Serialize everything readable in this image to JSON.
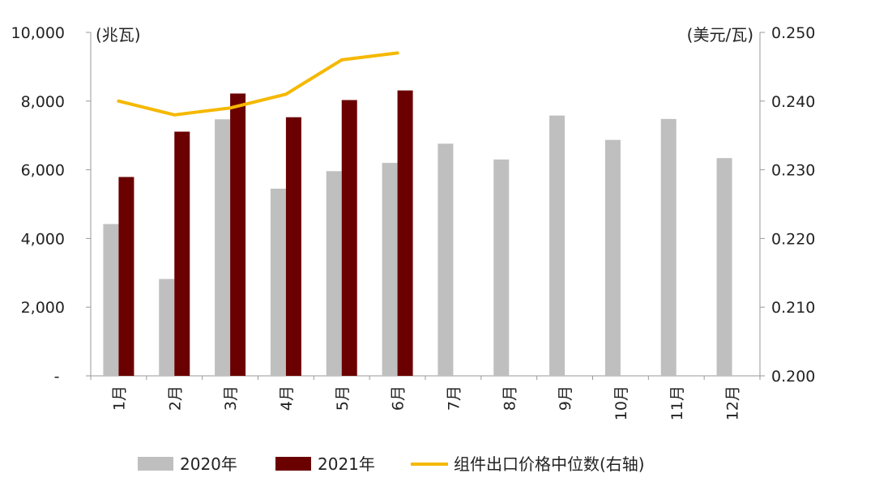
{
  "chart_data": {
    "type": "bar",
    "left_unit": "(兆瓦)",
    "right_unit": "(美元/瓦)",
    "categories": [
      "1月",
      "2月",
      "3月",
      "4月",
      "5月",
      "6月",
      "7月",
      "8月",
      "9月",
      "10月",
      "11月",
      "12月"
    ],
    "y_left": {
      "min": 0,
      "max": 10000,
      "ticks": [
        {
          "value": 0,
          "label": "-"
        },
        {
          "value": 2000,
          "label": "2,000"
        },
        {
          "value": 4000,
          "label": "4,000"
        },
        {
          "value": 6000,
          "label": "6,000"
        },
        {
          "value": 8000,
          "label": "8,000"
        },
        {
          "value": 10000,
          "label": "10,000"
        }
      ]
    },
    "y_right": {
      "min": 0.2,
      "max": 0.25,
      "ticks": [
        {
          "value": 0.2,
          "label": "0.200"
        },
        {
          "value": 0.21,
          "label": "0.210"
        },
        {
          "value": 0.22,
          "label": "0.220"
        },
        {
          "value": 0.23,
          "label": "0.230"
        },
        {
          "value": 0.24,
          "label": "0.240"
        },
        {
          "value": 0.25,
          "label": "0.250"
        }
      ]
    },
    "series": [
      {
        "name": "2020年",
        "type": "bar",
        "axis": "left",
        "color": "#bfbfbf",
        "values": [
          4420,
          2820,
          7470,
          5450,
          5960,
          6200,
          6760,
          6300,
          7580,
          6870,
          7480,
          6340
        ]
      },
      {
        "name": "2021年",
        "type": "bar",
        "axis": "left",
        "color": "#6b0000",
        "values": [
          5790,
          7110,
          8220,
          7530,
          8030,
          8310,
          null,
          null,
          null,
          null,
          null,
          null
        ]
      },
      {
        "name": "组件出口价格中位数(右轴)",
        "type": "line",
        "axis": "right",
        "color": "#f5b800",
        "values": [
          0.24,
          0.238,
          0.239,
          0.241,
          0.246,
          0.247,
          null,
          null,
          null,
          null,
          null,
          null
        ]
      }
    ],
    "legend_position": "bottom",
    "grid": false
  }
}
